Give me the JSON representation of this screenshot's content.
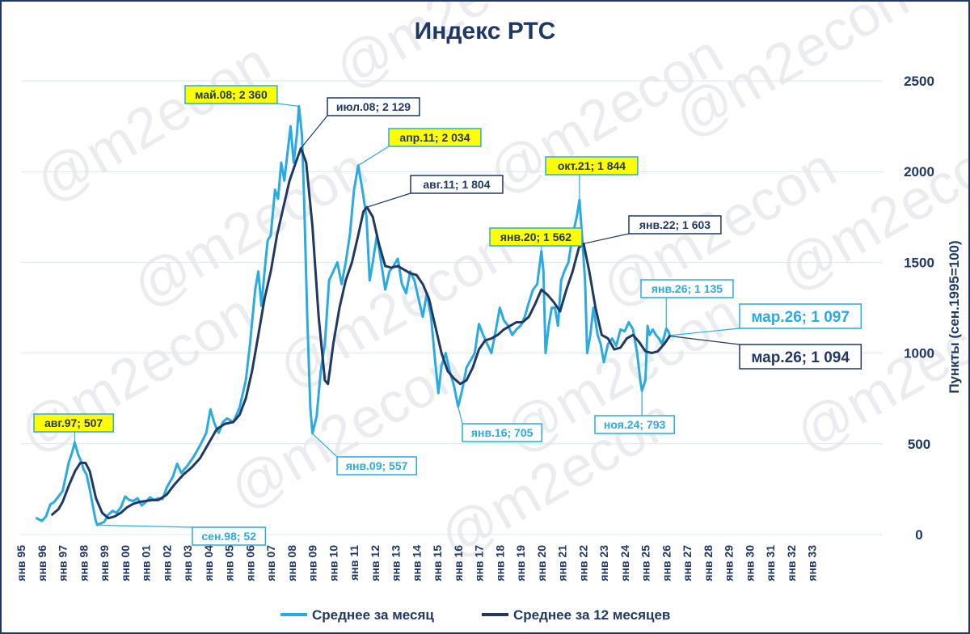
{
  "colors": {
    "monthly": "#29abe2",
    "yearly": "#1f3864",
    "highlight": "#ffff00",
    "grid": "#d9e8f0"
  },
  "watermark": "@m2econ",
  "chart_data": {
    "type": "line",
    "title": "Индекс РТС",
    "ylabel": "Пункты (сен.1995=100)",
    "ylim": [
      0,
      2500
    ],
    "yticks": [
      0,
      500,
      1000,
      1500,
      2000,
      2500
    ],
    "x_tick_labels": [
      "янв 95",
      "янв 96",
      "янв 97",
      "янв 98",
      "янв 99",
      "янв 00",
      "янв 01",
      "янв 02",
      "янв 03",
      "янв 04",
      "янв 05",
      "янв 06",
      "янв 07",
      "янв 08",
      "янв 09",
      "янв 10",
      "янв 11",
      "янв 12",
      "янв 13",
      "янв 14",
      "янв 15",
      "янв 16",
      "янв 17",
      "янв 18",
      "янв 19",
      "янв 20",
      "янв 21",
      "янв 22",
      "янв 23",
      "янв 24",
      "янв 25",
      "янв 26",
      "янв 27",
      "янв 28",
      "янв 29",
      "янв 30",
      "янв 31",
      "янв 32",
      "янв 33"
    ],
    "x_start_year": 1995,
    "legend_position": "bottom",
    "series": [
      {
        "name": "Среднее за месяц",
        "color": "#29abe2",
        "points": [
          [
            1995.75,
            90
          ],
          [
            1996.0,
            75
          ],
          [
            1996.2,
            100
          ],
          [
            1996.4,
            165
          ],
          [
            1996.6,
            180
          ],
          [
            1996.8,
            210
          ],
          [
            1997.0,
            240
          ],
          [
            1997.15,
            320
          ],
          [
            1997.3,
            400
          ],
          [
            1997.45,
            450
          ],
          [
            1997.58,
            507
          ],
          [
            1997.75,
            440
          ],
          [
            1997.9,
            400
          ],
          [
            1998.0,
            360
          ],
          [
            1998.15,
            330
          ],
          [
            1998.3,
            250
          ],
          [
            1998.45,
            160
          ],
          [
            1998.58,
            80
          ],
          [
            1998.67,
            52
          ],
          [
            1998.8,
            60
          ],
          [
            1999.0,
            70
          ],
          [
            1999.2,
            110
          ],
          [
            1999.4,
            130
          ],
          [
            1999.6,
            120
          ],
          [
            1999.8,
            150
          ],
          [
            2000.0,
            210
          ],
          [
            2000.2,
            190
          ],
          [
            2000.4,
            185
          ],
          [
            2000.6,
            200
          ],
          [
            2000.8,
            160
          ],
          [
            2001.0,
            180
          ],
          [
            2001.2,
            205
          ],
          [
            2001.4,
            190
          ],
          [
            2001.6,
            200
          ],
          [
            2001.8,
            195
          ],
          [
            2002.0,
            260
          ],
          [
            2002.3,
            320
          ],
          [
            2002.5,
            390
          ],
          [
            2002.7,
            340
          ],
          [
            2003.0,
            380
          ],
          [
            2003.3,
            430
          ],
          [
            2003.6,
            490
          ],
          [
            2003.9,
            560
          ],
          [
            2004.1,
            690
          ],
          [
            2004.3,
            610
          ],
          [
            2004.5,
            560
          ],
          [
            2004.7,
            620
          ],
          [
            2004.9,
            640
          ],
          [
            2005.2,
            620
          ],
          [
            2005.5,
            700
          ],
          [
            2005.8,
            850
          ],
          [
            2006.0,
            1050
          ],
          [
            2006.25,
            1350
          ],
          [
            2006.4,
            1450
          ],
          [
            2006.55,
            1260
          ],
          [
            2006.7,
            1450
          ],
          [
            2006.85,
            1620
          ],
          [
            2007.0,
            1650
          ],
          [
            2007.2,
            1900
          ],
          [
            2007.35,
            1850
          ],
          [
            2007.5,
            2050
          ],
          [
            2007.65,
            1950
          ],
          [
            2007.8,
            2100
          ],
          [
            2007.95,
            2250
          ],
          [
            2008.1,
            2050
          ],
          [
            2008.25,
            2200
          ],
          [
            2008.35,
            2360
          ],
          [
            2008.5,
            2200
          ],
          [
            2008.6,
            1850
          ],
          [
            2008.75,
            1200
          ],
          [
            2008.9,
            700
          ],
          [
            2009.0,
            557
          ],
          [
            2009.2,
            650
          ],
          [
            2009.4,
            900
          ],
          [
            2009.6,
            1050
          ],
          [
            2009.8,
            1400
          ],
          [
            2010.0,
            1450
          ],
          [
            2010.2,
            1500
          ],
          [
            2010.4,
            1380
          ],
          [
            2010.6,
            1500
          ],
          [
            2010.8,
            1650
          ],
          [
            2011.0,
            1900
          ],
          [
            2011.2,
            2034
          ],
          [
            2011.4,
            1900
          ],
          [
            2011.6,
            1750
          ],
          [
            2011.75,
            1400
          ],
          [
            2011.9,
            1500
          ],
          [
            2012.1,
            1650
          ],
          [
            2012.3,
            1500
          ],
          [
            2012.5,
            1350
          ],
          [
            2012.7,
            1450
          ],
          [
            2012.9,
            1480
          ],
          [
            2013.1,
            1520
          ],
          [
            2013.3,
            1380
          ],
          [
            2013.5,
            1330
          ],
          [
            2013.7,
            1450
          ],
          [
            2013.9,
            1400
          ],
          [
            2014.1,
            1300
          ],
          [
            2014.3,
            1200
          ],
          [
            2014.5,
            1330
          ],
          [
            2014.7,
            1200
          ],
          [
            2014.9,
            950
          ],
          [
            2015.05,
            780
          ],
          [
            2015.2,
            930
          ],
          [
            2015.4,
            1000
          ],
          [
            2015.6,
            900
          ],
          [
            2015.8,
            820
          ],
          [
            2016.0,
            705
          ],
          [
            2016.2,
            800
          ],
          [
            2016.4,
            920
          ],
          [
            2016.6,
            960
          ],
          [
            2016.8,
            1000
          ],
          [
            2017.0,
            1160
          ],
          [
            2017.2,
            1100
          ],
          [
            2017.4,
            1050
          ],
          [
            2017.6,
            1000
          ],
          [
            2017.8,
            1120
          ],
          [
            2018.0,
            1250
          ],
          [
            2018.2,
            1180
          ],
          [
            2018.4,
            1150
          ],
          [
            2018.6,
            1100
          ],
          [
            2018.8,
            1130
          ],
          [
            2019.0,
            1150
          ],
          [
            2019.2,
            1200
          ],
          [
            2019.4,
            1280
          ],
          [
            2019.6,
            1350
          ],
          [
            2019.8,
            1380
          ],
          [
            2020.0,
            1562
          ],
          [
            2020.1,
            1450
          ],
          [
            2020.2,
            1000
          ],
          [
            2020.35,
            1150
          ],
          [
            2020.5,
            1250
          ],
          [
            2020.65,
            1250
          ],
          [
            2020.8,
            1150
          ],
          [
            2020.95,
            1400
          ],
          [
            2021.1,
            1450
          ],
          [
            2021.3,
            1500
          ],
          [
            2021.5,
            1650
          ],
          [
            2021.7,
            1750
          ],
          [
            2021.83,
            1844
          ],
          [
            2021.95,
            1650
          ],
          [
            2022.1,
            1400
          ],
          [
            2022.2,
            1000
          ],
          [
            2022.35,
            1100
          ],
          [
            2022.5,
            1250
          ],
          [
            2022.7,
            1100
          ],
          [
            2022.85,
            1050
          ],
          [
            2023.0,
            950
          ],
          [
            2023.2,
            1050
          ],
          [
            2023.4,
            1080
          ],
          [
            2023.6,
            1040
          ],
          [
            2023.8,
            1130
          ],
          [
            2024.0,
            1120
          ],
          [
            2024.2,
            1170
          ],
          [
            2024.4,
            1130
          ],
          [
            2024.6,
            1000
          ],
          [
            2024.75,
            850
          ],
          [
            2024.83,
            793
          ],
          [
            2025.0,
            850
          ],
          [
            2025.1,
            1150
          ],
          [
            2025.2,
            1100
          ],
          [
            2025.35,
            1130
          ],
          [
            2025.5,
            1100
          ],
          [
            2025.65,
            1080
          ],
          [
            2025.8,
            1050
          ],
          [
            2026.0,
            1135
          ],
          [
            2026.1,
            1120
          ],
          [
            2026.17,
            1097
          ]
        ]
      },
      {
        "name": "Среднее за 12 месяцев",
        "color": "#1f3864",
        "points": [
          [
            1996.5,
            110
          ],
          [
            1996.8,
            140
          ],
          [
            1997.0,
            180
          ],
          [
            1997.3,
            270
          ],
          [
            1997.6,
            350
          ],
          [
            1997.85,
            395
          ],
          [
            1998.1,
            395
          ],
          [
            1998.3,
            350
          ],
          [
            1998.6,
            200
          ],
          [
            1998.9,
            120
          ],
          [
            1999.2,
            90
          ],
          [
            1999.5,
            100
          ],
          [
            1999.8,
            120
          ],
          [
            2000.1,
            150
          ],
          [
            2000.4,
            170
          ],
          [
            2000.7,
            180
          ],
          [
            2001.0,
            185
          ],
          [
            2001.3,
            190
          ],
          [
            2001.6,
            190
          ],
          [
            2002.0,
            220
          ],
          [
            2002.4,
            280
          ],
          [
            2002.8,
            330
          ],
          [
            2003.2,
            370
          ],
          [
            2003.6,
            420
          ],
          [
            2004.0,
            500
          ],
          [
            2004.4,
            580
          ],
          [
            2004.8,
            610
          ],
          [
            2005.2,
            620
          ],
          [
            2005.5,
            660
          ],
          [
            2005.8,
            750
          ],
          [
            2006.1,
            900
          ],
          [
            2006.4,
            1100
          ],
          [
            2006.7,
            1300
          ],
          [
            2007.0,
            1450
          ],
          [
            2007.3,
            1650
          ],
          [
            2007.6,
            1800
          ],
          [
            2007.9,
            1950
          ],
          [
            2008.2,
            2050
          ],
          [
            2008.45,
            2129
          ],
          [
            2008.7,
            2050
          ],
          [
            2009.0,
            1700
          ],
          [
            2009.3,
            1200
          ],
          [
            2009.6,
            850
          ],
          [
            2009.75,
            830
          ],
          [
            2010.0,
            1050
          ],
          [
            2010.3,
            1250
          ],
          [
            2010.6,
            1400
          ],
          [
            2010.9,
            1500
          ],
          [
            2011.2,
            1650
          ],
          [
            2011.45,
            1780
          ],
          [
            2011.62,
            1804
          ],
          [
            2011.9,
            1750
          ],
          [
            2012.2,
            1600
          ],
          [
            2012.5,
            1480
          ],
          [
            2012.8,
            1470
          ],
          [
            2013.1,
            1480
          ],
          [
            2013.4,
            1460
          ],
          [
            2013.7,
            1440
          ],
          [
            2014.0,
            1430
          ],
          [
            2014.3,
            1380
          ],
          [
            2014.6,
            1300
          ],
          [
            2014.9,
            1150
          ],
          [
            2015.2,
            1000
          ],
          [
            2015.5,
            900
          ],
          [
            2015.8,
            860
          ],
          [
            2016.1,
            830
          ],
          [
            2016.4,
            850
          ],
          [
            2016.7,
            920
          ],
          [
            2017.0,
            1020
          ],
          [
            2017.3,
            1070
          ],
          [
            2017.6,
            1080
          ],
          [
            2017.9,
            1100
          ],
          [
            2018.2,
            1130
          ],
          [
            2018.5,
            1150
          ],
          [
            2018.8,
            1170
          ],
          [
            2019.1,
            1170
          ],
          [
            2019.4,
            1200
          ],
          [
            2019.7,
            1270
          ],
          [
            2020.0,
            1350
          ],
          [
            2020.3,
            1320
          ],
          [
            2020.6,
            1280
          ],
          [
            2020.9,
            1230
          ],
          [
            2021.2,
            1350
          ],
          [
            2021.5,
            1450
          ],
          [
            2021.8,
            1580
          ],
          [
            2022.03,
            1603
          ],
          [
            2022.3,
            1450
          ],
          [
            2022.6,
            1250
          ],
          [
            2022.9,
            1100
          ],
          [
            2023.2,
            1080
          ],
          [
            2023.5,
            1020
          ],
          [
            2023.8,
            1030
          ],
          [
            2024.1,
            1080
          ],
          [
            2024.4,
            1100
          ],
          [
            2024.7,
            1060
          ],
          [
            2025.0,
            1010
          ],
          [
            2025.3,
            1000
          ],
          [
            2025.6,
            1010
          ],
          [
            2025.9,
            1050
          ],
          [
            2026.17,
            1094
          ]
        ]
      }
    ],
    "annotations": [
      {
        "text": "авг.97; 507",
        "series": 0,
        "x": 1997.58,
        "y": 507,
        "style": "yellow"
      },
      {
        "text": "сен.98; 52",
        "series": 0,
        "x": 1998.67,
        "y": 52,
        "style": "light"
      },
      {
        "text": "май.08; 2 360",
        "series": 0,
        "x": 2008.35,
        "y": 2360,
        "style": "yellow"
      },
      {
        "text": "июл.08; 2 129",
        "series": 1,
        "x": 2008.45,
        "y": 2129,
        "style": "dark"
      },
      {
        "text": "янв.09; 557",
        "series": 0,
        "x": 2009.0,
        "y": 557,
        "style": "light"
      },
      {
        "text": "апр.11; 2 034",
        "series": 0,
        "x": 2011.2,
        "y": 2034,
        "style": "yellow"
      },
      {
        "text": "авг.11; 1 804",
        "series": 1,
        "x": 2011.62,
        "y": 1804,
        "style": "dark"
      },
      {
        "text": "янв.16; 705",
        "series": 0,
        "x": 2016.0,
        "y": 705,
        "style": "light"
      },
      {
        "text": "янв.20; 1 562",
        "series": 0,
        "x": 2020.0,
        "y": 1562,
        "style": "yellow"
      },
      {
        "text": "окт.21; 1 844",
        "series": 0,
        "x": 2021.83,
        "y": 1844,
        "style": "yellow"
      },
      {
        "text": "янв.22; 1 603",
        "series": 1,
        "x": 2022.03,
        "y": 1603,
        "style": "dark"
      },
      {
        "text": "ноя.24; 793",
        "series": 0,
        "x": 2024.83,
        "y": 793,
        "style": "light"
      },
      {
        "text": "янв.26; 1 135",
        "series": 0,
        "x": 2026.0,
        "y": 1135,
        "style": "light"
      },
      {
        "text": "мар.26; 1 097",
        "series": 0,
        "x": 2026.17,
        "y": 1097,
        "style": "light-big"
      },
      {
        "text": "мар.26; 1 094",
        "series": 1,
        "x": 2026.17,
        "y": 1094,
        "style": "dark-big"
      }
    ]
  }
}
